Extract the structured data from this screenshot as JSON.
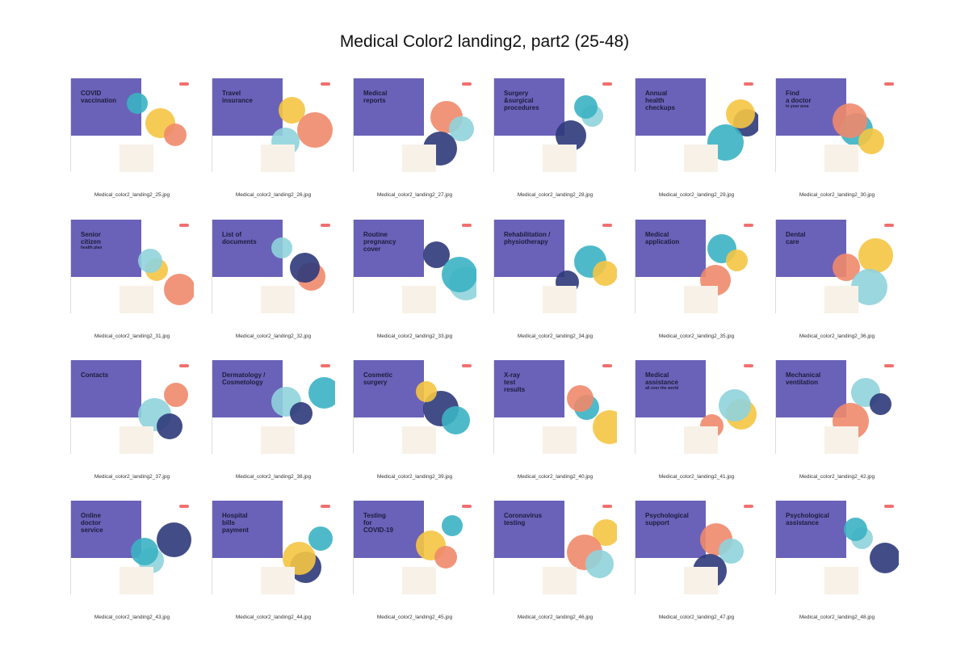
{
  "header": {
    "title": "Medical Color2 landing2, part2 (25-48)"
  },
  "thumbnails": [
    {
      "heading": [
        "COVID",
        "vaccination"
      ],
      "filename": "Medical_color2_landing2_25.jpg"
    },
    {
      "heading": [
        "Travel",
        "insurance"
      ],
      "filename": "Medical_color2_landing2_26.jpg"
    },
    {
      "heading": [
        "Medical",
        "reports"
      ],
      "filename": "Medical_color2_landing2_27.jpg"
    },
    {
      "heading": [
        "Surgery",
        "&surgical",
        "procedures"
      ],
      "filename": "Medical_color2_landing2_28.jpg"
    },
    {
      "heading": [
        "Annual",
        "health",
        "checkups"
      ],
      "filename": "Medical_color2_landing2_29.jpg"
    },
    {
      "heading": [
        "Find",
        "a doctor"
      ],
      "subheading": "in your area",
      "filename": "Medical_color2_landing2_30.jpg"
    },
    {
      "heading": [
        "Senior",
        "citizen"
      ],
      "subheading": "health plan",
      "filename": "Medical_color2_landing2_31.jpg"
    },
    {
      "heading": [
        "List of",
        "documents"
      ],
      "filename": "Medical_color2_landing2_32.jpg"
    },
    {
      "heading": [
        "Routine",
        "pregnancy",
        "cover"
      ],
      "filename": "Medical_color2_landing2_33.jpg"
    },
    {
      "heading": [
        "Rehabilitation /",
        "physiotherapy"
      ],
      "filename": "Medical_color2_landing2_34.jpg"
    },
    {
      "heading": [
        "Medical",
        "application"
      ],
      "filename": "Medical_color2_landing2_35.jpg"
    },
    {
      "heading": [
        "Dental",
        "care"
      ],
      "filename": "Medical_color2_landing2_36.jpg"
    },
    {
      "heading": [
        "Contacts"
      ],
      "filename": "Medical_color2_landing2_37.jpg"
    },
    {
      "heading": [
        "Dermatology /",
        "Cosmetology"
      ],
      "filename": "Medical_color2_landing2_38.jpg"
    },
    {
      "heading": [
        "Cosmetic",
        "surgery"
      ],
      "filename": "Medical_color2_landing2_39.jpg"
    },
    {
      "heading": [
        "X-ray",
        "test",
        "results"
      ],
      "filename": "Medical_color2_landing2_40.jpg"
    },
    {
      "heading": [
        "Medical",
        "assistance"
      ],
      "subheading": "all over the world",
      "filename": "Medical_color2_landing2_41.jpg"
    },
    {
      "heading": [
        "Mechanical",
        "ventilation"
      ],
      "filename": "Medical_color2_landing2_42.jpg"
    },
    {
      "heading": [
        "Online",
        "doctor",
        "service"
      ],
      "filename": "Medical_color2_landing2_43.jpg"
    },
    {
      "heading": [
        "Hospital",
        "bills",
        "payment"
      ],
      "filename": "Medical_color2_landing2_44.jpg"
    },
    {
      "heading": [
        "Testing",
        "for",
        "COVID-19"
      ],
      "filename": "Medical_color2_landing2_45.jpg"
    },
    {
      "heading": [
        "Coronavirus",
        "testing"
      ],
      "filename": "Medical_color2_landing2_46.jpg"
    },
    {
      "heading": [
        "Psychological",
        "support"
      ],
      "filename": "Medical_color2_landing2_47.jpg"
    },
    {
      "heading": [
        "Psychological",
        "assistance"
      ],
      "filename": "Medical_color2_landing2_48.jpg"
    }
  ]
}
